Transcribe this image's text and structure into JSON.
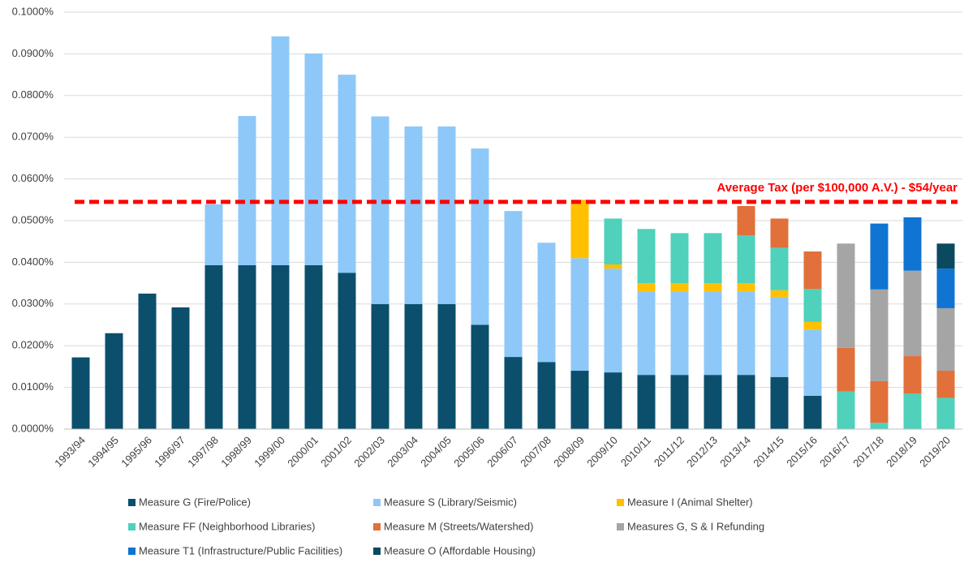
{
  "chart_data": {
    "type": "stacked_bar",
    "categories": [
      "1993/94",
      "1994/95",
      "1995/96",
      "1996/97",
      "1997/98",
      "1998/99",
      "1999/00",
      "2000/01",
      "2001/02",
      "2002/03",
      "2003/04",
      "2004/05",
      "2005/06",
      "2006/07",
      "2007/08",
      "2008/09",
      "2009/10",
      "2010/11",
      "2011/12",
      "2012/13",
      "2013/14",
      "2014/15",
      "2015/16",
      "2016/17",
      "2017/18",
      "2018/19",
      "2019/20"
    ],
    "series": [
      {
        "name": "Measure G (Fire/Police)",
        "color": "#0b4f6c",
        "values": [
          0.0172,
          0.023,
          0.0325,
          0.0292,
          0.0393,
          0.0393,
          0.0393,
          0.0393,
          0.0375,
          0.03,
          0.03,
          0.03,
          0.025,
          0.0173,
          0.0161,
          0.014,
          0.0136,
          0.013,
          0.013,
          0.013,
          0.013,
          0.0125,
          0.008,
          null,
          null,
          null,
          null
        ]
      },
      {
        "name": "Measure S (Library/Seismic)",
        "color": "#8ec8f8",
        "values": [
          null,
          null,
          null,
          null,
          0.0146,
          0.0358,
          0.0549,
          0.0508,
          0.0475,
          0.045,
          0.0426,
          0.0426,
          0.0423,
          0.035,
          0.0286,
          0.027,
          0.0249,
          0.02,
          0.02,
          0.02,
          0.02,
          0.0191,
          0.0158,
          null,
          null,
          null,
          null
        ]
      },
      {
        "name": "Measure I (Animal Shelter)",
        "color": "#ffc000",
        "values": [
          null,
          null,
          null,
          null,
          null,
          null,
          null,
          null,
          null,
          null,
          null,
          null,
          null,
          null,
          null,
          0.014,
          0.001,
          0.002,
          0.002,
          0.002,
          0.002,
          0.0017,
          0.0019,
          null,
          null,
          null,
          null
        ]
      },
      {
        "name": "Measure FF (Neighborhood Libraries)",
        "color": "#4fd1bb",
        "values": [
          null,
          null,
          null,
          null,
          null,
          null,
          null,
          null,
          null,
          null,
          null,
          null,
          null,
          null,
          null,
          null,
          0.011,
          0.013,
          0.012,
          0.012,
          0.0115,
          0.0102,
          0.0079,
          0.009,
          0.0015,
          0.0085,
          0.0075
        ]
      },
      {
        "name": "Measure M (Streets/Watershed)",
        "color": "#e2703a",
        "values": [
          null,
          null,
          null,
          null,
          null,
          null,
          null,
          null,
          null,
          null,
          null,
          null,
          null,
          null,
          null,
          null,
          null,
          null,
          null,
          null,
          0.007,
          0.007,
          0.009,
          0.0105,
          0.01,
          0.009,
          0.0065
        ]
      },
      {
        "name": "Measures G, S & I Refunding",
        "color": "#a5a5a5",
        "values": [
          null,
          null,
          null,
          null,
          null,
          null,
          null,
          null,
          null,
          null,
          null,
          null,
          null,
          null,
          null,
          null,
          null,
          null,
          null,
          null,
          null,
          null,
          null,
          0.025,
          0.022,
          0.0205,
          0.015
        ]
      },
      {
        "name": "Measure T1 (Infrastructure/Public Facilities)",
        "color": "#0f74d2",
        "values": [
          null,
          null,
          null,
          null,
          null,
          null,
          null,
          null,
          null,
          null,
          null,
          null,
          null,
          null,
          null,
          null,
          null,
          null,
          null,
          null,
          null,
          null,
          null,
          null,
          0.0158,
          0.0128,
          0.0095
        ]
      },
      {
        "name": "Measure O (Affordable Housing)",
        "color": "#0a4960",
        "values": [
          null,
          null,
          null,
          null,
          null,
          null,
          null,
          null,
          null,
          null,
          null,
          null,
          null,
          null,
          null,
          null,
          null,
          null,
          null,
          null,
          null,
          null,
          null,
          null,
          null,
          null,
          0.006
        ]
      }
    ],
    "ylim": [
      0,
      0.1
    ],
    "yticks": [
      {
        "value": 0,
        "label": "0.0000%"
      },
      {
        "value": 0.01,
        "label": "0.0100%"
      },
      {
        "value": 0.02,
        "label": "0.0200%"
      },
      {
        "value": 0.03,
        "label": "0.0300%"
      },
      {
        "value": 0.04,
        "label": "0.0400%"
      },
      {
        "value": 0.05,
        "label": "0.0500%"
      },
      {
        "value": 0.06,
        "label": "0.0600%"
      },
      {
        "value": 0.07,
        "label": "0.0700%"
      },
      {
        "value": 0.08,
        "label": "0.0800%"
      },
      {
        "value": 0.09,
        "label": "0.0900%"
      },
      {
        "value": 0.1,
        "label": "0.1000%"
      }
    ],
    "grid": true,
    "reference_line": {
      "value": 0.0545,
      "label": "Average Tax (per $100,000 A.V.) - $54/year",
      "color": "#ff0000"
    }
  }
}
